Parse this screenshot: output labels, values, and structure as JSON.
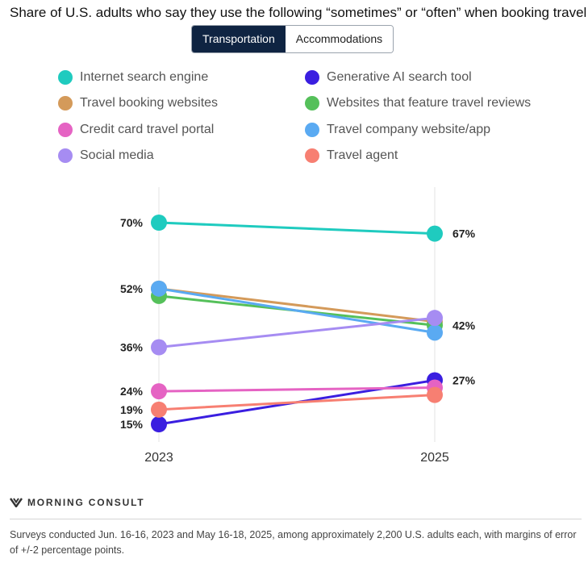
{
  "title": "Share of U.S. adults who say they use the following “sometimes” or “often” when booking travel",
  "tabs": [
    {
      "label": "Transportation",
      "active": true
    },
    {
      "label": "Accommodations",
      "active": false
    }
  ],
  "brand": "MORNING CONSULT",
  "footnote": "Surveys conducted Jun. 16-16, 2023 and May 16-18, 2025, among approximately 2,200 U.S. adults each, with margins of error of +/-2 percentage points.",
  "chart_data": {
    "type": "line",
    "title": "Share of U.S. adults who say they use the following “sometimes” or “often” when booking travel",
    "x": [
      "2023",
      "2025"
    ],
    "ylim": [
      15,
      70
    ],
    "ylabel": "",
    "xlabel": "",
    "series": [
      {
        "name": "Internet search engine",
        "color": "#1fcbbf",
        "values": [
          70,
          67
        ]
      },
      {
        "name": "Generative AI search tool",
        "color": "#3a1ee0",
        "values": [
          15,
          27
        ]
      },
      {
        "name": "Travel booking websites",
        "color": "#d49a5a",
        "values": [
          52,
          43
        ]
      },
      {
        "name": "Websites that feature travel reviews",
        "color": "#55c05a",
        "values": [
          50,
          42
        ]
      },
      {
        "name": "Credit card travel portal",
        "color": "#e563c3",
        "values": [
          24,
          25
        ]
      },
      {
        "name": "Travel company website/app",
        "color": "#5aaaf2",
        "values": [
          52,
          40
        ]
      },
      {
        "name": "Social media",
        "color": "#a68cf2",
        "values": [
          36,
          44
        ]
      },
      {
        "name": "Travel agent",
        "color": "#f77f72",
        "values": [
          19,
          23
        ]
      }
    ],
    "data_labels": {
      "left": [
        "70%",
        "52%",
        "36%",
        "24%",
        "19%",
        "15%"
      ],
      "right": [
        "67%",
        "42%",
        "27%"
      ]
    }
  }
}
